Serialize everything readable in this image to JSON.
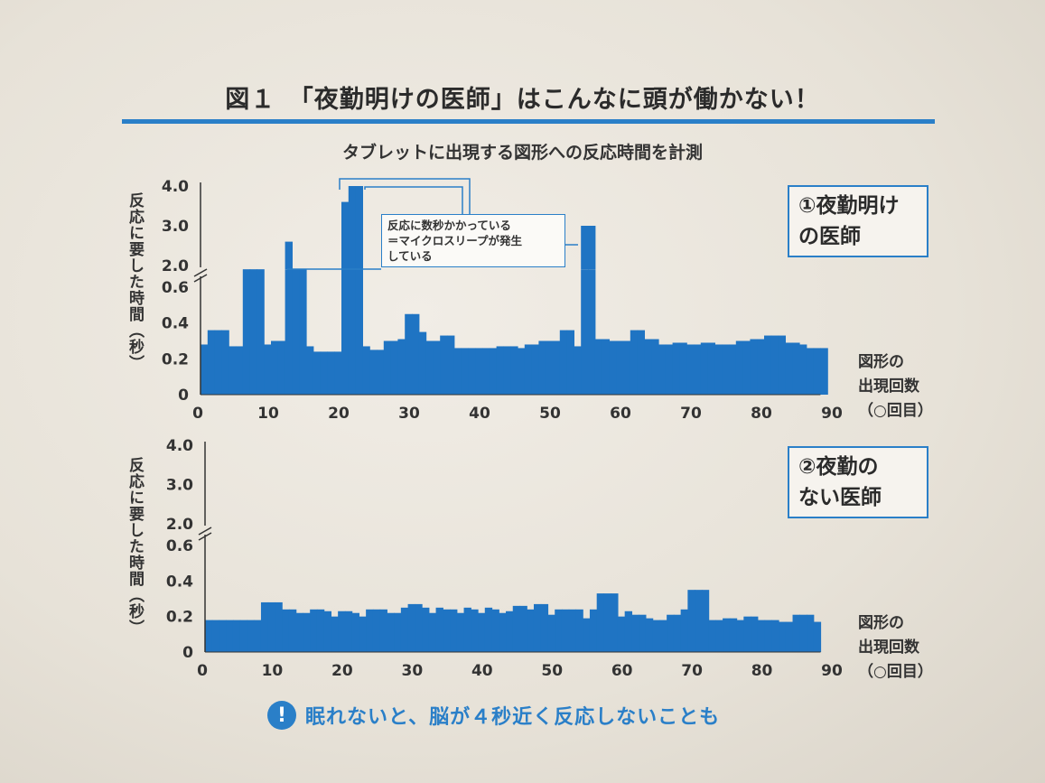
{
  "figure": {
    "title": "図１　「夜勤明けの医師」はこんなに頭が働かない！",
    "subtitle": "タブレットに出現する図形への反応時間を計測",
    "annotation": "反応に数秒かかっている\n＝マイクロスリープが発生\nしている",
    "footer": {
      "icon": "exclamation-circle-icon",
      "icon_glyph": "!",
      "text": "眠れないと、脳が４秒近く反応しないことも"
    },
    "accent_color": "#2a7fc8",
    "bar_color": "#1f74c3"
  },
  "chart_data": [
    {
      "type": "bar",
      "legend": "①夜勤明け\nの医師",
      "ylabel": "反応に要した時間（秒）",
      "xlabel": "図形の\n出現回数\n（○回目）",
      "x_ticks": [
        0,
        10,
        20,
        30,
        40,
        50,
        60,
        70,
        80,
        90
      ],
      "y_ticks_lower": [
        "0",
        "0.2",
        "0.4",
        "0.6"
      ],
      "y_ticks_upper": [
        "2.0",
        "3.0",
        "4.0"
      ],
      "y_break": [
        0.7,
        2.0
      ],
      "x_range": [
        0,
        90
      ],
      "values": [
        0.28,
        0.36,
        0.36,
        0.36,
        0.27,
        0.27,
        0.7,
        0.7,
        0.7,
        0.28,
        0.3,
        0.3,
        2.6,
        0.7,
        0.7,
        0.27,
        0.24,
        0.24,
        0.24,
        0.24,
        3.6,
        4.0,
        4.0,
        0.27,
        0.25,
        0.25,
        0.3,
        0.3,
        0.31,
        0.45,
        0.45,
        0.35,
        0.3,
        0.3,
        0.33,
        0.33,
        0.26,
        0.26,
        0.26,
        0.26,
        0.26,
        0.26,
        0.27,
        0.27,
        0.27,
        0.26,
        0.28,
        0.28,
        0.3,
        0.3,
        0.3,
        0.36,
        0.36,
        0.27,
        3.0,
        3.0,
        0.31,
        0.31,
        0.3,
        0.3,
        0.3,
        0.36,
        0.36,
        0.31,
        0.31,
        0.28,
        0.28,
        0.29,
        0.29,
        0.28,
        0.28,
        0.29,
        0.29,
        0.28,
        0.28,
        0.28,
        0.3,
        0.3,
        0.31,
        0.31,
        0.33,
        0.33,
        0.33,
        0.29,
        0.29,
        0.28,
        0.26,
        0.26,
        0.26
      ]
    },
    {
      "type": "bar",
      "legend": "②夜勤の\nない医師",
      "ylabel": "反応に要した時間（秒）",
      "xlabel": "図形の\n出現回数\n（○回目）",
      "x_ticks": [
        0,
        10,
        20,
        30,
        40,
        50,
        60,
        70,
        80,
        90
      ],
      "y_ticks_lower": [
        "0",
        "0.2",
        "0.4",
        "0.6"
      ],
      "y_ticks_upper": [
        "2.0",
        "3.0",
        "4.0"
      ],
      "y_break": [
        0.7,
        2.0
      ],
      "x_range": [
        0,
        90
      ],
      "values": [
        0.18,
        0.18,
        0.18,
        0.18,
        0.18,
        0.18,
        0.18,
        0.18,
        0.28,
        0.28,
        0.28,
        0.24,
        0.24,
        0.22,
        0.22,
        0.24,
        0.24,
        0.23,
        0.2,
        0.23,
        0.23,
        0.22,
        0.2,
        0.24,
        0.24,
        0.24,
        0.22,
        0.22,
        0.25,
        0.27,
        0.27,
        0.25,
        0.22,
        0.25,
        0.24,
        0.24,
        0.22,
        0.25,
        0.24,
        0.22,
        0.25,
        0.24,
        0.22,
        0.23,
        0.26,
        0.26,
        0.24,
        0.27,
        0.27,
        0.21,
        0.24,
        0.24,
        0.24,
        0.24,
        0.19,
        0.24,
        0.33,
        0.33,
        0.33,
        0.2,
        0.23,
        0.21,
        0.21,
        0.19,
        0.18,
        0.18,
        0.21,
        0.21,
        0.24,
        0.35,
        0.35,
        0.35,
        0.18,
        0.18,
        0.19,
        0.19,
        0.18,
        0.2,
        0.2,
        0.18,
        0.18,
        0.18,
        0.17,
        0.17,
        0.21,
        0.21,
        0.21,
        0.17
      ]
    }
  ]
}
